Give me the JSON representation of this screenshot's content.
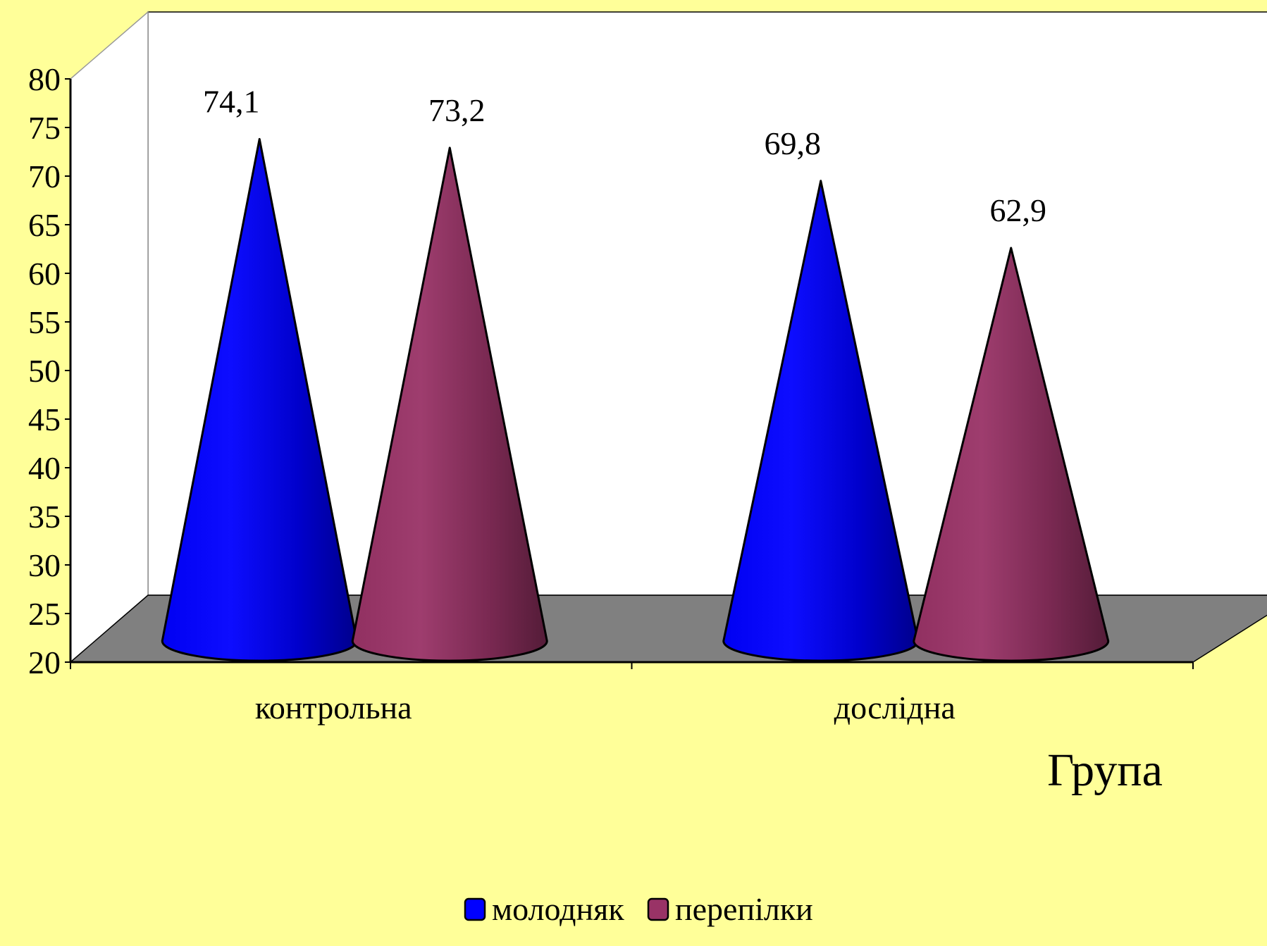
{
  "colors": {
    "background": "#ffff99",
    "plot_wall": "#ffffff",
    "plot_floor": "#808080",
    "series_1": "#0000ff",
    "series_2": "#993366"
  },
  "chart_data": {
    "type": "bar",
    "shape": "cone",
    "three_d": true,
    "categories": [
      "контрольна",
      "дослідна"
    ],
    "series": [
      {
        "name": "молодняк",
        "values": [
          74.1,
          69.8
        ]
      },
      {
        "name": "перепілки",
        "values": [
          73.2,
          62.9
        ]
      }
    ],
    "data_labels": [
      [
        "74,1",
        "69,8"
      ],
      [
        "73,2",
        "62,9"
      ]
    ],
    "title": "",
    "xlabel": "Група",
    "ylabel": "",
    "ylim": [
      20,
      80
    ],
    "ytick_step": 5,
    "yticks": [
      "20",
      "25",
      "30",
      "35",
      "40",
      "45",
      "50",
      "55",
      "60",
      "65",
      "70",
      "75",
      "80"
    ],
    "grid": false,
    "legend_position": "bottom"
  }
}
